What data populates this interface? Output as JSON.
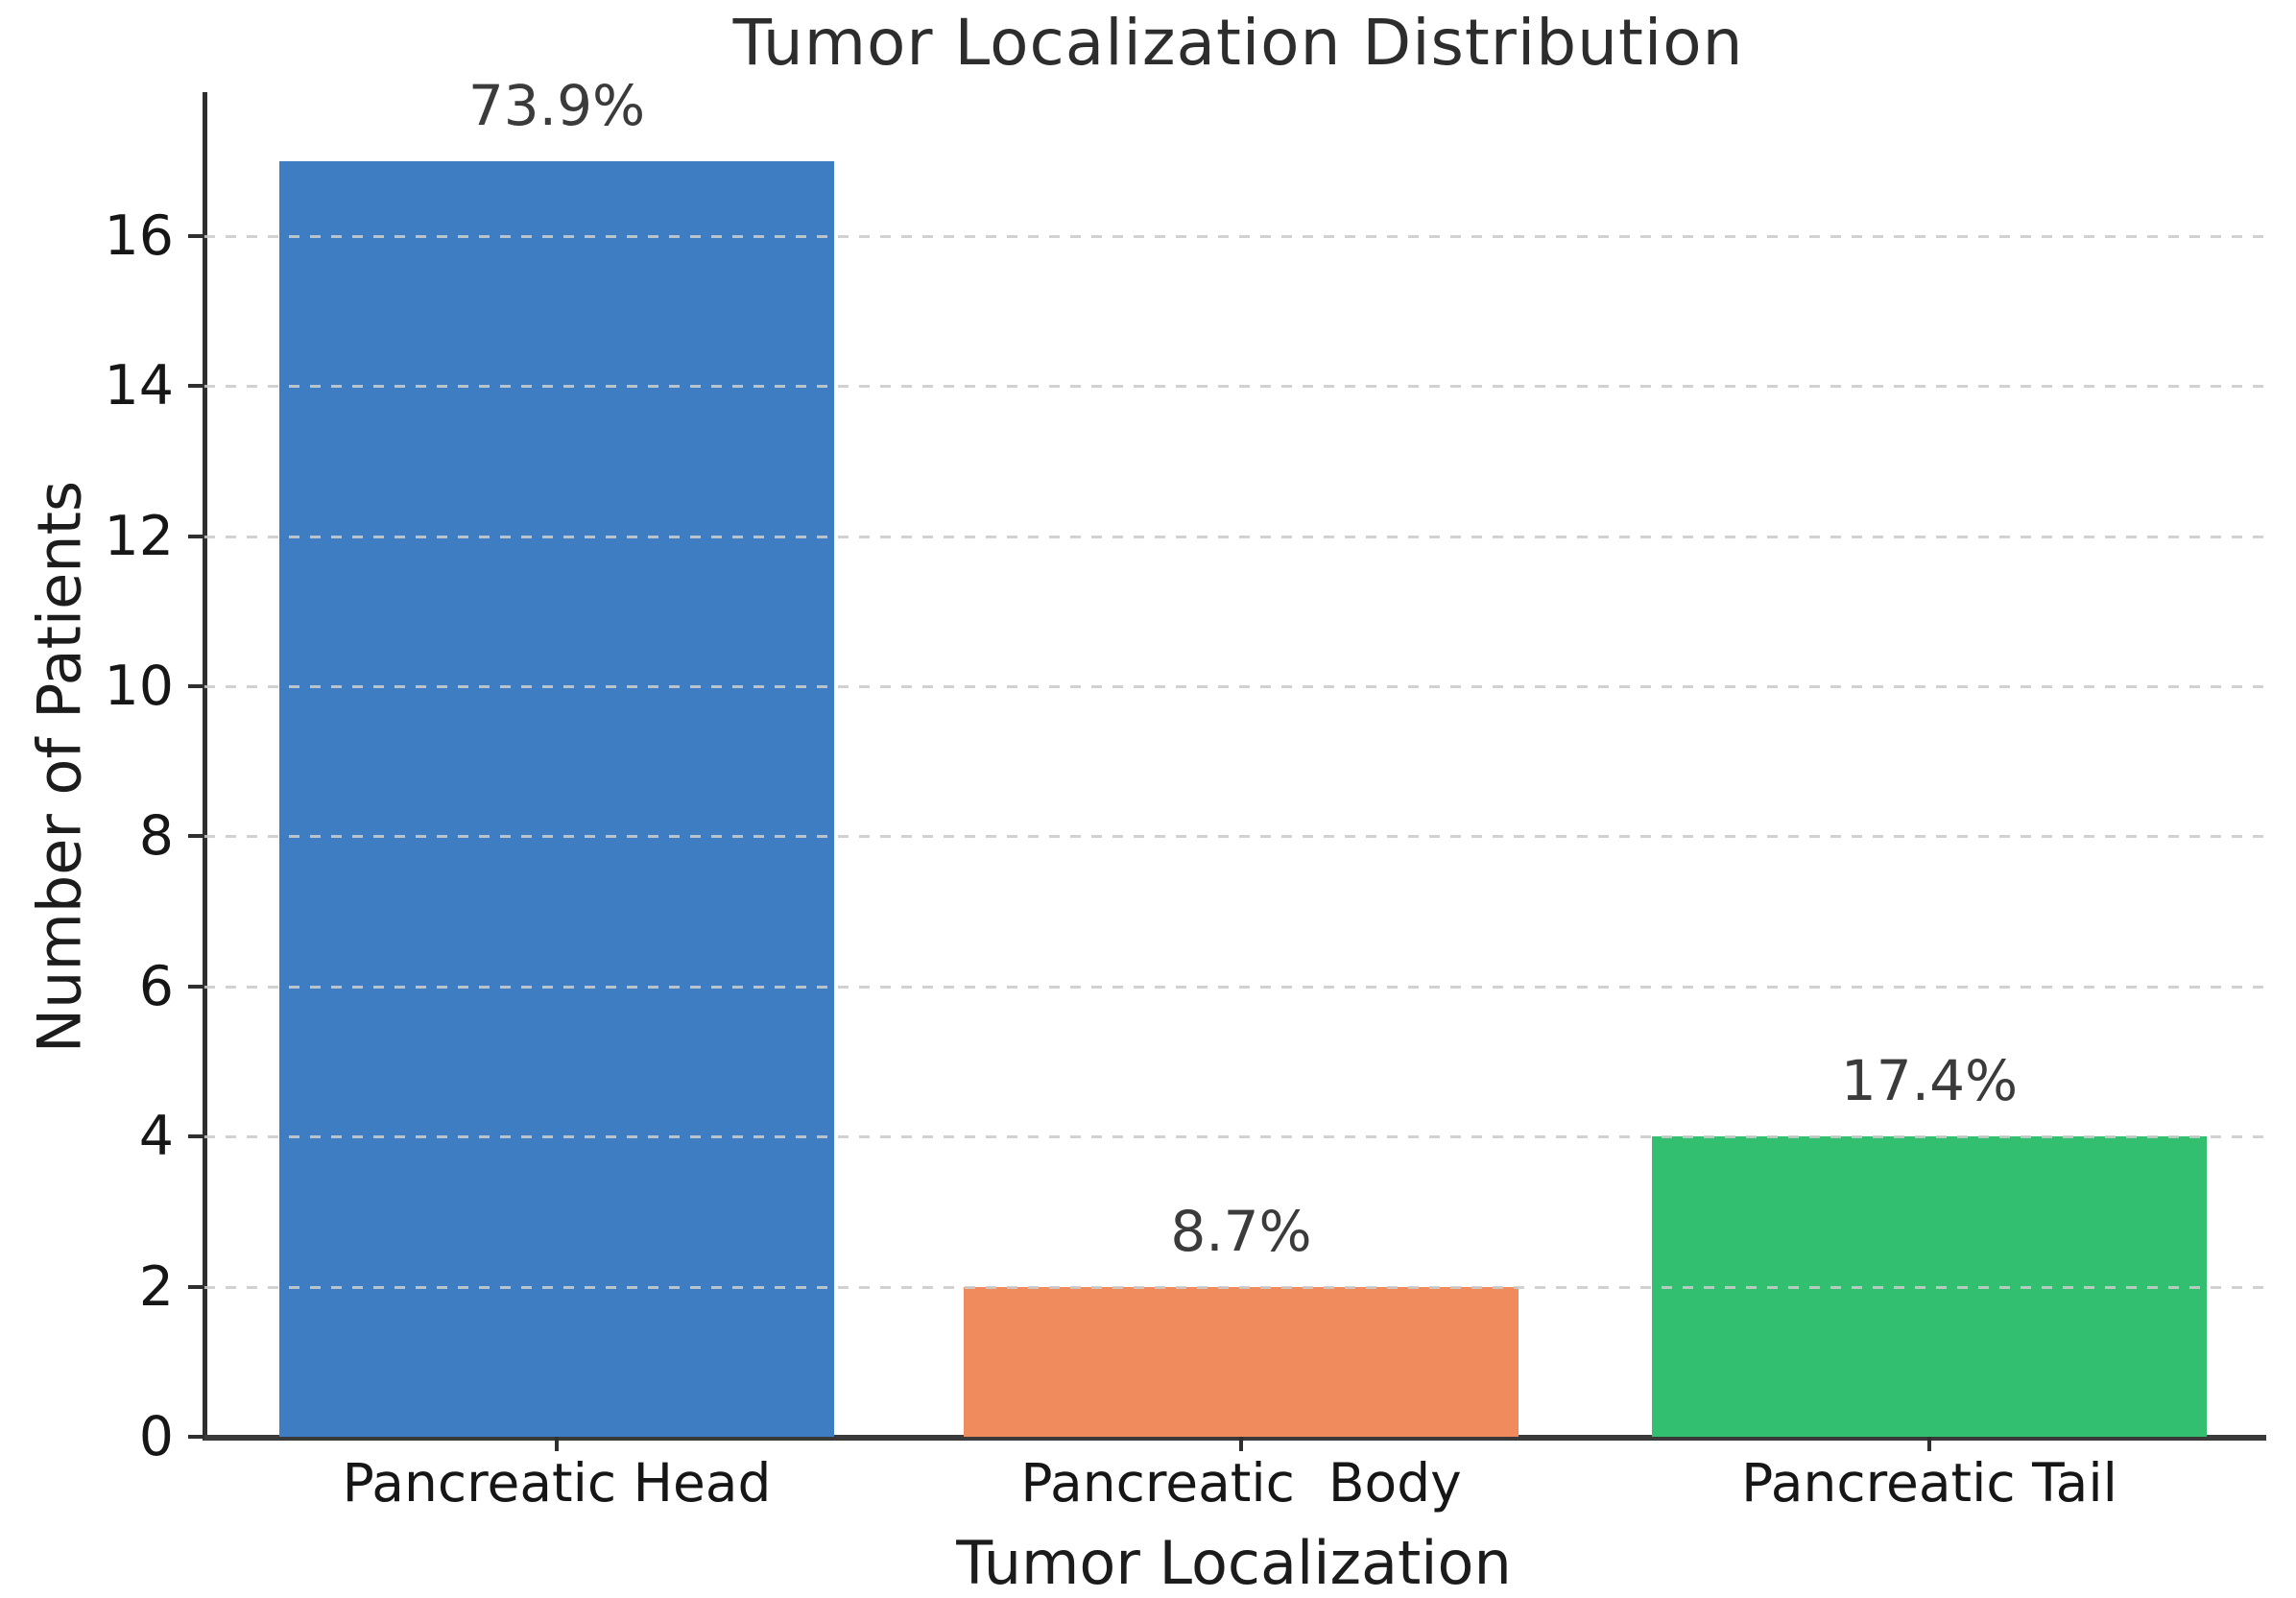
{
  "chart_data": {
    "type": "bar",
    "title": "Tumor Localization Distribution",
    "xlabel": "Tumor Localization",
    "ylabel": "Number of Patients",
    "categories": [
      "Pancreatic Head",
      "Pancreatic  Body",
      "Pancreatic Tail"
    ],
    "values": [
      17,
      2,
      4
    ],
    "bar_labels": [
      "73.9%",
      "8.7%",
      "17.4%"
    ],
    "bar_colors": [
      "#3f7dc3",
      "#ef8b5d",
      "#33bf70"
    ],
    "yticks": [
      0,
      2,
      4,
      6,
      8,
      10,
      12,
      14,
      16
    ],
    "ylim": [
      0,
      17.85
    ],
    "grid": "horizontal-dashed-over-bars",
    "legend": "none",
    "axis_color": "#2f2f2f",
    "grid_color": "#cbcbcb"
  }
}
